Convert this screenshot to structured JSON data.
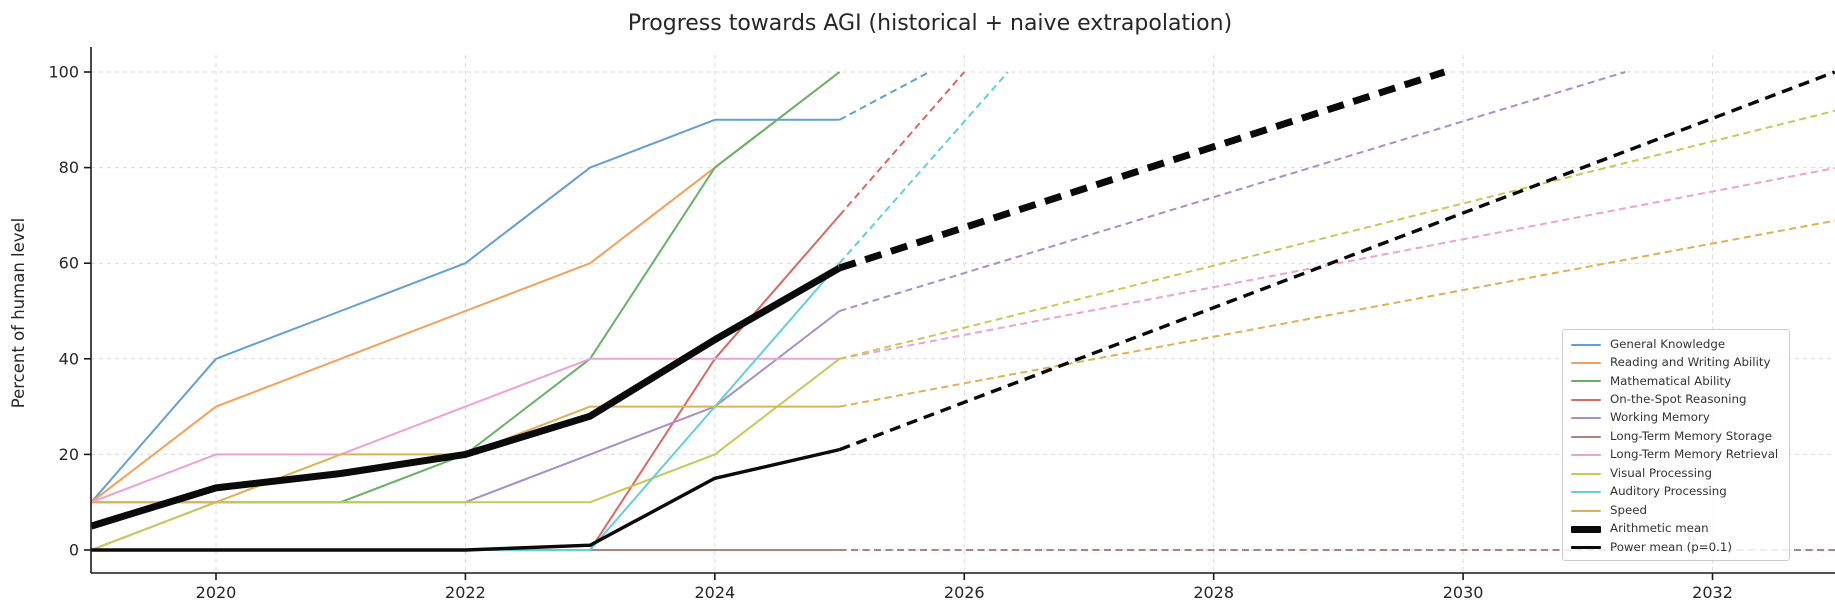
{
  "window": {
    "kind": "matplotlib-style line chart",
    "background": "#ffffff"
  },
  "chart_data": {
    "type": "line",
    "title": "Progress towards AGI (historical + naive extrapolation)",
    "xlabel": "",
    "ylabel": "Percent of human level",
    "xlim": [
      2019,
      2033.05
    ],
    "ylim": [
      0,
      100
    ],
    "x_ticks": [
      2020,
      2022,
      2024,
      2026,
      2028,
      2030,
      2032
    ],
    "y_ticks": [
      0,
      20,
      40,
      60,
      80,
      100
    ],
    "grid": "both, light gray dashed",
    "legend_position": "lower right inside axes",
    "history_years": [
      2019,
      2020,
      2021,
      2022,
      2023,
      2024,
      2025
    ],
    "extrapolation_start_year": 2025,
    "series": [
      {
        "name": "General Knowledge",
        "color": "#639fd2",
        "line_width": 2,
        "values": [
          10,
          40,
          50,
          60,
          80,
          90,
          90
        ],
        "extrapolation_end": [
          2025.72,
          100
        ]
      },
      {
        "name": "Reading and Writing Ability",
        "color": "#f5a05a",
        "line_width": 2,
        "values": [
          10,
          30,
          40,
          50,
          60,
          80,
          100
        ],
        "extrapolation_end": null
      },
      {
        "name": "Mathematical Ability",
        "color": "#68b168",
        "line_width": 2,
        "values": [
          10,
          10,
          10,
          20,
          40,
          80,
          100
        ],
        "extrapolation_end": null
      },
      {
        "name": "On-the-Spot Reasoning",
        "color": "#dc6862",
        "line_width": 2,
        "values": [
          0,
          0,
          0,
          0,
          0,
          40,
          70
        ],
        "extrapolation_end": [
          2026.0,
          100
        ]
      },
      {
        "name": "Working Memory",
        "color": "#a78fca",
        "line_width": 2,
        "values": [
          0,
          10,
          10,
          10,
          20,
          30,
          50
        ],
        "extrapolation_end": [
          2031.3,
          100
        ]
      },
      {
        "name": "Long-Term Memory Storage",
        "color": "#ad837c",
        "line_width": 2,
        "values": [
          0,
          0,
          0,
          0,
          0,
          0,
          0
        ],
        "extrapolation_end": [
          2033.0,
          0
        ]
      },
      {
        "name": "Long-Term Memory Retrieval",
        "color": "#eda2d5",
        "line_width": 2,
        "values": [
          10,
          20,
          20,
          30,
          40,
          40,
          40
        ],
        "extrapolation_end": [
          2033.0,
          80
        ]
      },
      {
        "name": "Visual Processing",
        "color": "#c6c958",
        "line_width": 2,
        "values": [
          0,
          10,
          10,
          10,
          10,
          20,
          40
        ],
        "extrapolation_end": [
          2033.0,
          92
        ]
      },
      {
        "name": "Auditory Processing",
        "color": "#62cfdc",
        "line_width": 2,
        "values": [
          0,
          0,
          0,
          0,
          0,
          30,
          60
        ],
        "extrapolation_end": [
          2026.35,
          100
        ]
      },
      {
        "name": "Speed",
        "color": "#ddb154",
        "line_width": 2,
        "values": [
          10,
          10,
          20,
          20,
          30,
          30,
          30
        ],
        "extrapolation_end": [
          2033.0,
          69
        ]
      },
      {
        "name": "Arithmetic mean",
        "color": "#0a0a0a",
        "line_width": 7,
        "values": [
          5,
          13,
          16,
          20,
          28,
          44,
          59
        ],
        "extrapolation_end": [
          2029.85,
          100
        ]
      },
      {
        "name": "Power mean (p=0.1)",
        "color": "#0a0a0a",
        "line_width": 3.4,
        "values": [
          0,
          0,
          0,
          0,
          1,
          15,
          21
        ],
        "extrapolation_end": [
          2032.98,
          100
        ]
      }
    ]
  },
  "legend": {
    "title": "",
    "rows_are_series_names": true
  }
}
